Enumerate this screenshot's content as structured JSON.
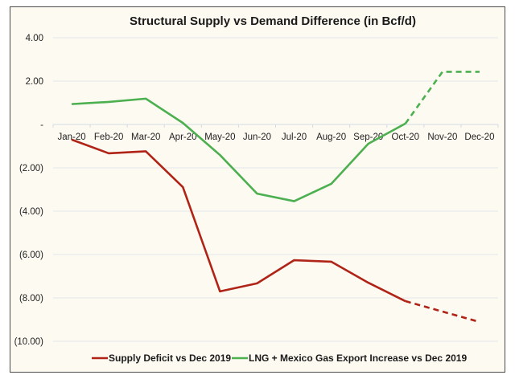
{
  "chart_data": {
    "type": "line",
    "title": "Structural Supply vs Demand Difference (in Bcf/d)",
    "xlabel": "",
    "ylabel": "",
    "categories": [
      "Jan-20",
      "Feb-20",
      "Mar-20",
      "Apr-20",
      "May-20",
      "Jun-20",
      "Jul-20",
      "Aug-20",
      "Sep-20",
      "Oct-20",
      "Nov-20",
      "Dec-20"
    ],
    "ylim": [
      -10,
      4
    ],
    "yticks": [
      4,
      2,
      0,
      -2,
      -4,
      -6,
      -8,
      -10
    ],
    "ytick_labels": [
      "4.00",
      "2.00",
      "-",
      "(2.00)",
      "(4.00)",
      "(6.00)",
      "(8.00)",
      "(10.00)"
    ],
    "grid": true,
    "legend_position": "bottom",
    "series": [
      {
        "name": "Supply Deficit vs Dec 2019",
        "color": "#b02418",
        "values": [
          -0.7,
          -1.33,
          -1.24,
          -2.89,
          -7.7,
          -7.33,
          -6.26,
          -6.33,
          -7.3,
          -8.15,
          -8.63,
          -9.11
        ],
        "dashed_from_index": 9
      },
      {
        "name": "LNG + Mexico Gas Export Increase vs Dec 2019",
        "color": "#4caf50",
        "values": [
          0.94,
          1.04,
          1.19,
          0.07,
          -1.41,
          -3.19,
          -3.54,
          -2.74,
          -0.89,
          0.04,
          2.43,
          2.43
        ],
        "dashed_from_index": 9
      }
    ]
  }
}
